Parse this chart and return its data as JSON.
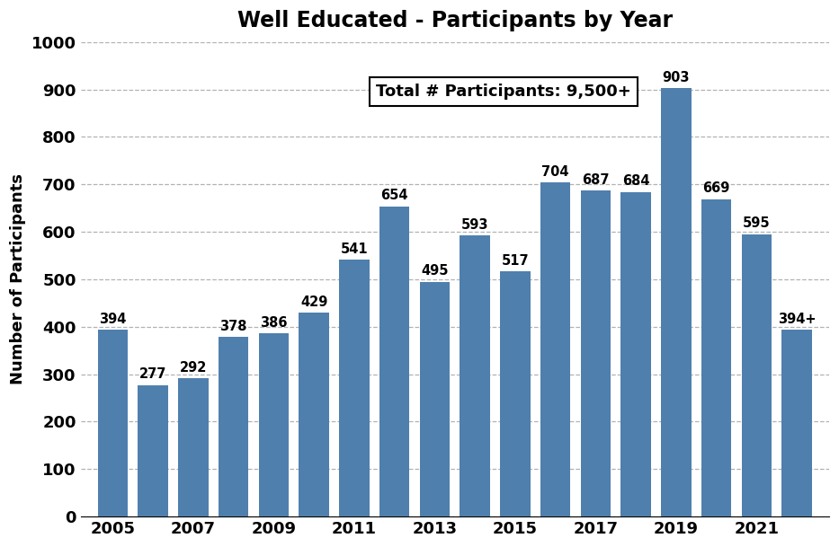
{
  "title": "Well Educated - Participants by Year",
  "ylabel": "Number of Participants",
  "annotation": "Total # Participants: 9,500+",
  "years": [
    2005,
    2006,
    2007,
    2008,
    2009,
    2010,
    2011,
    2012,
    2013,
    2014,
    2015,
    2016,
    2017,
    2018,
    2019,
    2020,
    2021,
    2022
  ],
  "values": [
    394,
    277,
    292,
    378,
    386,
    429,
    541,
    654,
    495,
    593,
    517,
    704,
    687,
    684,
    903,
    669,
    595,
    394
  ],
  "labels": [
    "394",
    "277",
    "292",
    "378",
    "386",
    "429",
    "541",
    "654",
    "495",
    "593",
    "517",
    "704",
    "687",
    "684",
    "903",
    "669",
    "595",
    "394+"
  ],
  "bar_color": "#4f7fad",
  "background_color": "#ffffff",
  "ylim": [
    0,
    1000
  ],
  "yticks": [
    0,
    100,
    200,
    300,
    400,
    500,
    600,
    700,
    800,
    900,
    1000
  ],
  "shown_xticks": [
    2005,
    2007,
    2009,
    2011,
    2013,
    2015,
    2017,
    2019,
    2021
  ],
  "title_fontsize": 17,
  "label_fontsize": 13,
  "tick_fontsize": 13,
  "bar_label_fontsize": 10.5,
  "annotation_fontsize": 13
}
